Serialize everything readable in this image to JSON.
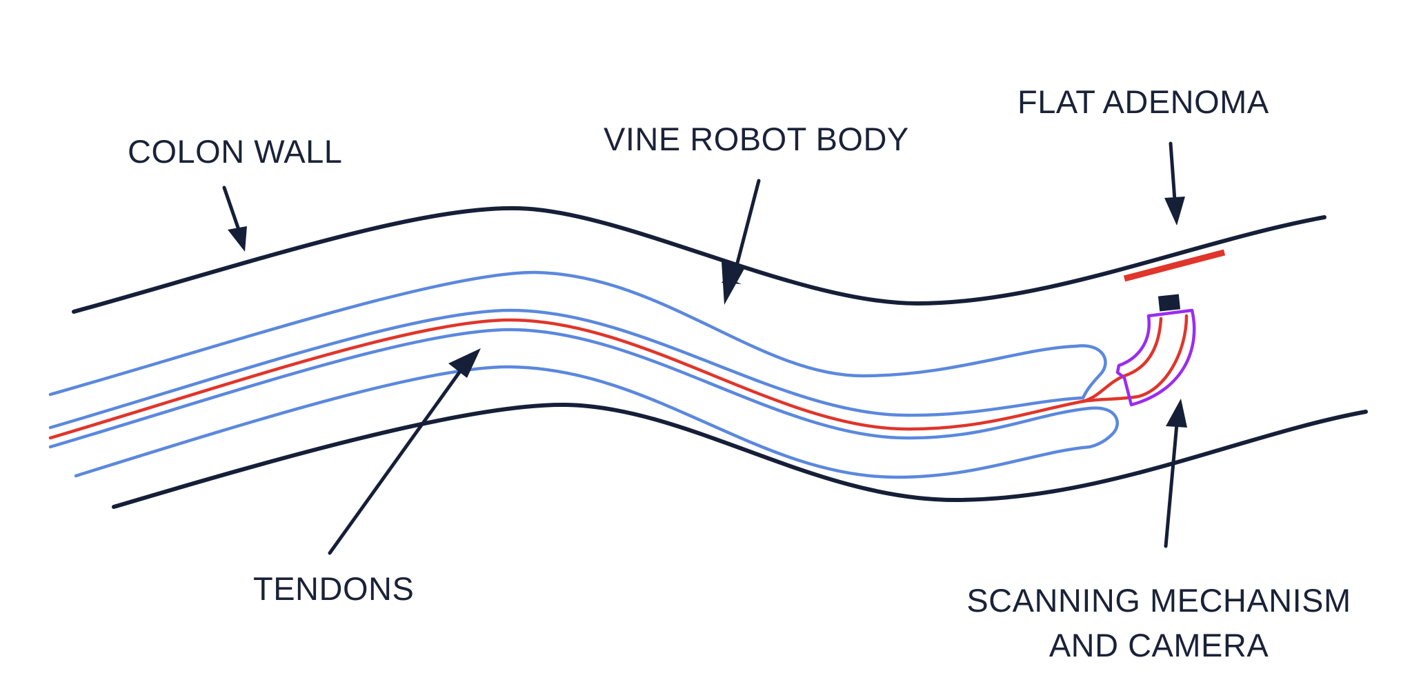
{
  "labels": {
    "colon_wall": "COLON WALL",
    "vine_robot_body": "VINE ROBOT BODY",
    "flat_adenoma": "FLAT ADENOMA",
    "tendons": "TENDONS",
    "scanning_line1": "SCANNING MECHANISM",
    "scanning_line2": "AND CAMERA"
  },
  "colors": {
    "colon_wall": "#161f38",
    "robot_body": "#5b88de",
    "tendon": "#e0352b",
    "scanner": "#9b2cf0",
    "adenoma": "#e0352b",
    "text": "#1a2238"
  }
}
